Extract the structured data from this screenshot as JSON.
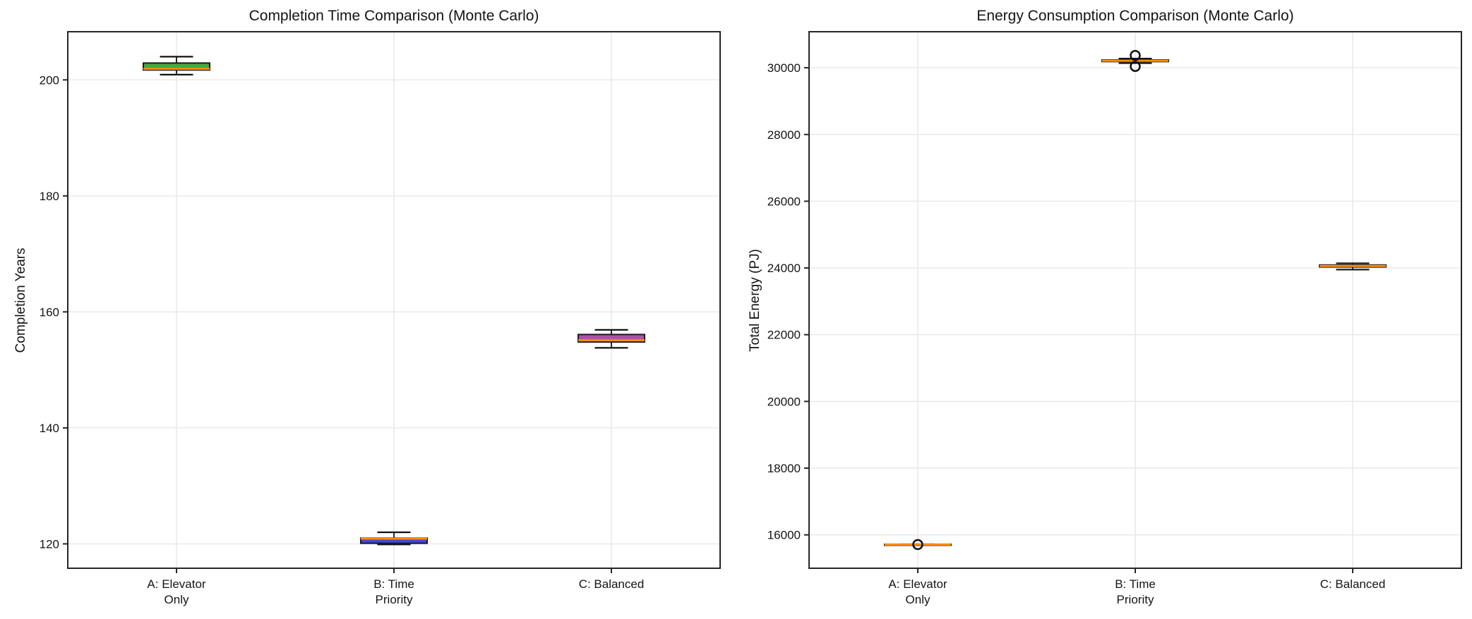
{
  "chart_data": [
    {
      "type": "box",
      "title": "Completion Time Comparison (Monte Carlo)",
      "ylabel": "Completion Years",
      "xlabel": "",
      "categories": [
        "A: Elevator Only",
        "B: Time Priority",
        "C: Balanced"
      ],
      "category_lines": [
        [
          "A: Elevator",
          "Only"
        ],
        [
          "B: Time",
          "Priority"
        ],
        [
          "C: Balanced"
        ]
      ],
      "yticks": [
        120,
        140,
        160,
        180,
        200
      ],
      "ylim": [
        115.8,
        208.3
      ],
      "grid": true,
      "legend": "none",
      "median_color": "#ff8c00",
      "boxes": [
        {
          "label": "A: Elevator Only",
          "whislo": 200.9,
          "q1": 201.7,
          "med": 201.9,
          "q3": 202.9,
          "whishi": 204.0,
          "fliers": [],
          "fill": "#4aa54a"
        },
        {
          "label": "B: Time Priority",
          "whislo": 119.9,
          "q1": 120.1,
          "med": 120.9,
          "q3": 121.0,
          "whishi": 122.0,
          "fliers": [],
          "fill": "#4444e0"
        },
        {
          "label": "C: Balanced",
          "whislo": 153.8,
          "q1": 154.8,
          "med": 155.1,
          "q3": 156.1,
          "whishi": 156.9,
          "fliers": [],
          "fill": "#a855a8"
        }
      ]
    },
    {
      "type": "box",
      "title": "Energy Consumption Comparison (Monte Carlo)",
      "ylabel": "Total Energy (PJ)",
      "xlabel": "",
      "categories": [
        "A: Elevator Only",
        "B: Time Priority",
        "C: Balanced"
      ],
      "category_lines": [
        [
          "A: Elevator",
          "Only"
        ],
        [
          "B: Time",
          "Priority"
        ],
        [
          "C: Balanced"
        ]
      ],
      "yticks": [
        16000,
        18000,
        20000,
        22000,
        24000,
        26000,
        28000,
        30000
      ],
      "ylim": [
        15000,
        31080
      ],
      "grid": true,
      "legend": "none",
      "median_color": "#ff8c00",
      "boxes": [
        {
          "label": "A: Elevator Only",
          "whislo": 15700,
          "q1": 15700,
          "med": 15710,
          "q3": 15720,
          "whishi": 15720,
          "fliers": [
            15710
          ],
          "fill": "#4aa54a"
        },
        {
          "label": "B: Time Priority",
          "whislo": 30140,
          "q1": 30185,
          "med": 30210,
          "q3": 30235,
          "whishi": 30275,
          "fliers": [
            30370,
            30040
          ],
          "fill": "#4444e0"
        },
        {
          "label": "C: Balanced",
          "whislo": 23950,
          "q1": 24030,
          "med": 24060,
          "q3": 24090,
          "whishi": 24140,
          "fliers": [],
          "fill": "#a855a8"
        }
      ]
    }
  ],
  "colors": {
    "median": "#ff8c00",
    "box_edge": "#111111",
    "spine": "#262626",
    "grid": "#e9e9e9",
    "box_a_fill": "#4aa54a",
    "box_b_fill": "#4444e0",
    "box_c_fill": "#a855a8"
  }
}
